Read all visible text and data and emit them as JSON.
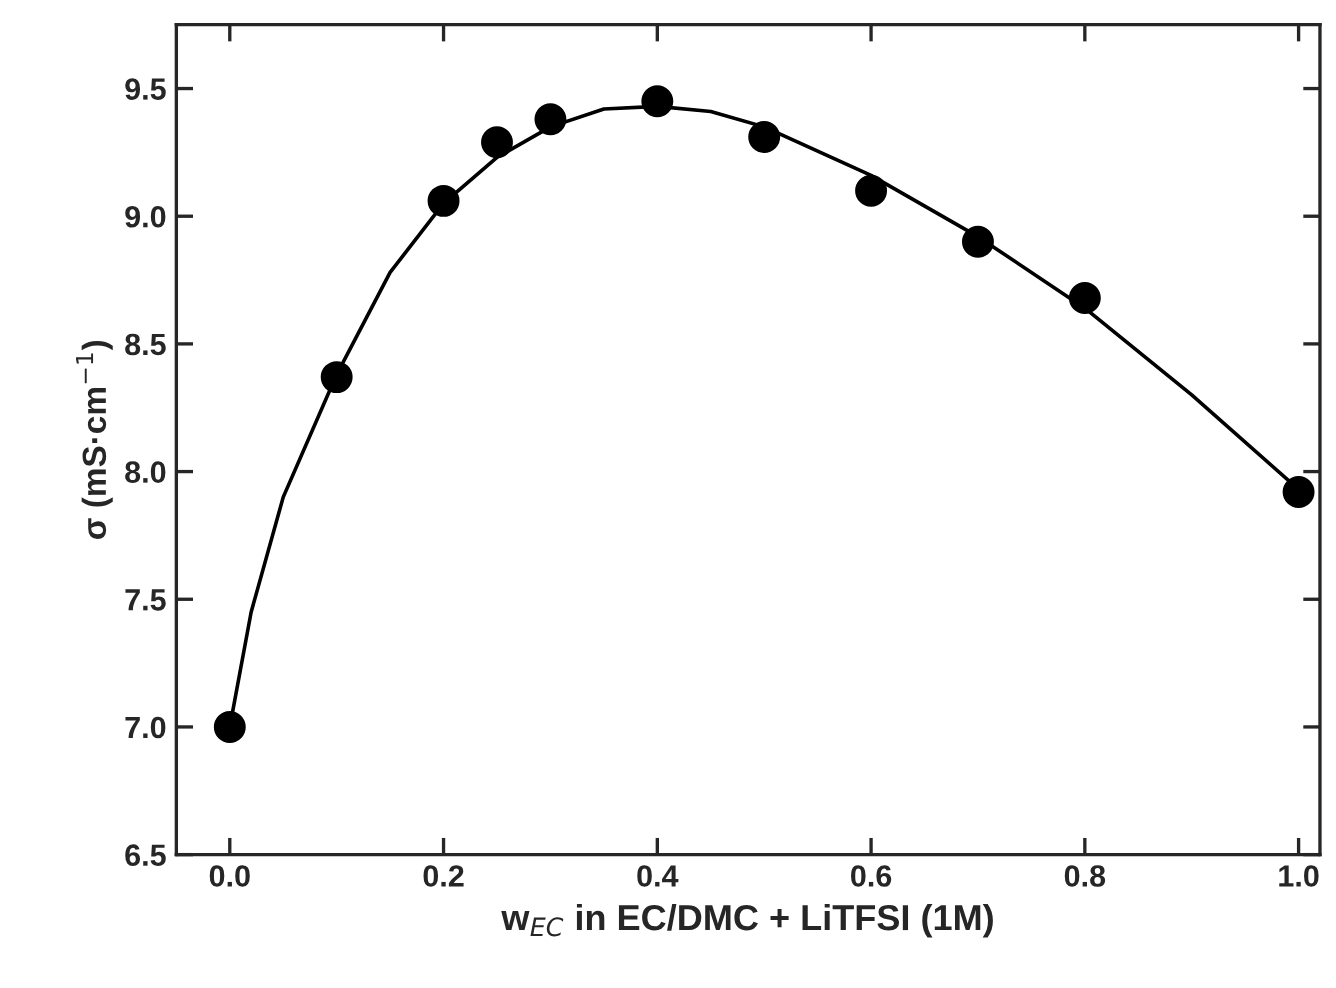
{
  "chart_data": {
    "type": "scatter",
    "xlabel": "w$_{EC}$ in EC/DMC + LiTFSI (1M)",
    "ylabel": "σ (mS·cm$^{−1}$)",
    "xlim": [
      -0.05,
      1.02
    ],
    "ylim": [
      6.5,
      9.75
    ],
    "xticks": [
      {
        "value": 0,
        "label": "0.0"
      },
      0.2,
      0.4,
      0.6,
      0.8,
      {
        "value": 1,
        "label": "1.0"
      }
    ],
    "yticks": [
      6.5,
      {
        "value": 7,
        "label": "7.0"
      },
      7.5,
      {
        "value": 8,
        "label": "8.0"
      },
      8.5,
      {
        "value": 9,
        "label": "9.0"
      },
      9.5
    ],
    "grid": false,
    "marker": "circle",
    "series": [
      {
        "color": "#000000",
        "x": [
          0.0,
          0.1,
          0.2,
          0.25,
          0.3,
          0.4,
          0.5,
          0.6,
          0.7,
          0.8,
          1.0
        ],
        "values": [
          7.0,
          8.37,
          9.06,
          9.29,
          9.38,
          9.45,
          9.31,
          9.1,
          8.9,
          8.68,
          7.92
        ]
      },
      {
        "type": "line",
        "color": "#000000",
        "line_style": "solid",
        "marker": "none",
        "x": [
          0.0,
          0.02,
          0.05,
          0.1,
          0.15,
          0.2,
          0.25,
          0.3,
          0.35,
          0.4,
          0.45,
          0.5,
          0.6,
          0.7,
          0.8,
          0.9,
          1.0
        ],
        "values": [
          7.0,
          7.45,
          7.9,
          8.38,
          8.78,
          9.05,
          9.23,
          9.35,
          9.42,
          9.43,
          9.41,
          9.35,
          9.16,
          8.92,
          8.64,
          8.3,
          7.93
        ]
      }
    ]
  }
}
